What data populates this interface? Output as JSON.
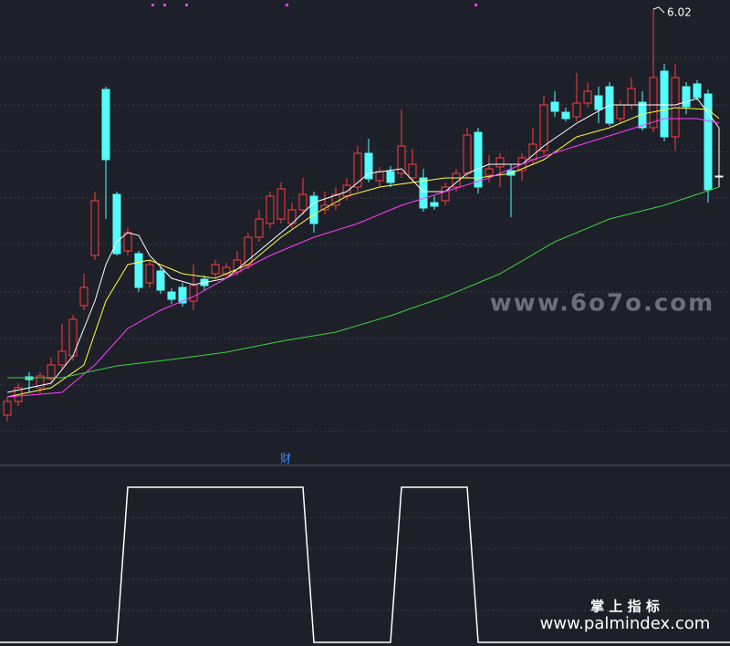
{
  "chart_data": [
    {
      "type": "candlestick",
      "up_color": "#ff3c3c",
      "down_color": "#54fcfc",
      "flat_color": "#ffffff",
      "ylim": [
        3.62,
        6.07
      ],
      "ohlc": [
        [
          3.795,
          3.895,
          3.76,
          3.87
        ],
        [
          3.87,
          3.97,
          3.845,
          3.945
        ],
        [
          4.005,
          4.03,
          3.92,
          3.99
        ],
        [
          3.945,
          4.03,
          3.91,
          4.01
        ],
        [
          3.995,
          4.11,
          3.97,
          4.07
        ],
        [
          4.07,
          4.295,
          4.045,
          4.145
        ],
        [
          4.12,
          4.345,
          4.095,
          4.32
        ],
        [
          4.395,
          4.57,
          4.37,
          4.495
        ],
        [
          4.67,
          5.02,
          4.645,
          4.97
        ],
        [
          5.58,
          5.595,
          4.87,
          5.195
        ],
        [
          5.005,
          5.02,
          4.67,
          4.68
        ],
        [
          4.695,
          4.82,
          4.67,
          4.795
        ],
        [
          4.68,
          4.695,
          4.47,
          4.495
        ],
        [
          4.52,
          4.645,
          4.495,
          4.62
        ],
        [
          4.585,
          4.61,
          4.46,
          4.48
        ],
        [
          4.47,
          4.49,
          4.405,
          4.43
        ],
        [
          4.495,
          4.52,
          4.39,
          4.41
        ],
        [
          4.42,
          4.62,
          4.37,
          4.505
        ],
        [
          4.54,
          4.56,
          4.48,
          4.505
        ],
        [
          4.57,
          4.645,
          4.545,
          4.62
        ],
        [
          4.57,
          4.63,
          4.55,
          4.605
        ],
        [
          4.58,
          4.695,
          4.56,
          4.645
        ],
        [
          4.62,
          4.795,
          4.595,
          4.77
        ],
        [
          4.77,
          4.92,
          4.745,
          4.87
        ],
        [
          4.845,
          5.02,
          4.82,
          4.995
        ],
        [
          4.87,
          5.07,
          4.845,
          5.035
        ],
        [
          4.845,
          4.96,
          4.82,
          4.92
        ],
        [
          4.92,
          5.095,
          4.895,
          5.005
        ],
        [
          4.995,
          5.02,
          4.795,
          4.845
        ],
        [
          4.92,
          5.02,
          4.895,
          4.945
        ],
        [
          4.945,
          5.045,
          4.92,
          5.005
        ],
        [
          4.995,
          5.095,
          4.97,
          5.055
        ],
        [
          5.045,
          5.27,
          5.02,
          5.23
        ],
        [
          5.23,
          5.31,
          5.07,
          5.09
        ],
        [
          5.08,
          5.155,
          5.045,
          5.13
        ],
        [
          5.13,
          5.16,
          5.045,
          5.07
        ],
        [
          5.12,
          5.47,
          5.095,
          5.27
        ],
        [
          5.095,
          5.255,
          5.07,
          5.17
        ],
        [
          5.095,
          5.145,
          4.91,
          4.93
        ],
        [
          4.96,
          4.995,
          4.92,
          4.94
        ],
        [
          4.97,
          5.07,
          4.945,
          5.045
        ],
        [
          5.045,
          5.145,
          5.02,
          5.12
        ],
        [
          5.12,
          5.37,
          5.095,
          5.33
        ],
        [
          5.345,
          5.37,
          5.01,
          5.045
        ],
        [
          5.11,
          5.22,
          5.07,
          5.145
        ],
        [
          5.155,
          5.23,
          5.045,
          5.205
        ],
        [
          5.135,
          5.17,
          4.88,
          5.11
        ],
        [
          5.135,
          5.23,
          5.08,
          5.205
        ],
        [
          5.195,
          5.37,
          5.17,
          5.28
        ],
        [
          5.245,
          5.545,
          5.22,
          5.495
        ],
        [
          5.51,
          5.57,
          5.43,
          5.46
        ],
        [
          5.455,
          5.48,
          5.405,
          5.42
        ],
        [
          5.43,
          5.67,
          5.405,
          5.505
        ],
        [
          5.505,
          5.62,
          5.48,
          5.57
        ],
        [
          5.545,
          5.595,
          5.395,
          5.47
        ],
        [
          5.595,
          5.62,
          5.38,
          5.395
        ],
        [
          5.42,
          5.52,
          5.395,
          5.495
        ],
        [
          5.495,
          5.645,
          5.47,
          5.585
        ],
        [
          5.51,
          5.57,
          5.355,
          5.37
        ],
        [
          5.37,
          6.02,
          5.345,
          5.645
        ],
        [
          5.68,
          5.72,
          5.295,
          5.32
        ],
        [
          5.32,
          5.72,
          5.245,
          5.645
        ],
        [
          5.595,
          5.62,
          5.445,
          5.485
        ],
        [
          5.61,
          5.63,
          5.52,
          5.535
        ],
        [
          5.555,
          5.58,
          4.96,
          5.03
        ],
        [
          5.105,
          5.37,
          5.045,
          5.105
        ]
      ],
      "lines": [
        {
          "color": "#ffffff",
          "x": [
            0,
            4,
            6,
            8,
            9,
            10,
            11,
            12,
            13,
            15,
            17,
            20,
            23,
            26,
            28,
            31,
            33,
            36,
            38,
            40,
            42,
            44,
            47,
            49,
            52,
            55,
            58,
            61,
            63,
            65
          ],
          "values": [
            3.92,
            3.97,
            4.12,
            4.42,
            4.62,
            4.745,
            4.795,
            4.78,
            4.67,
            4.545,
            4.51,
            4.545,
            4.695,
            4.845,
            4.96,
            5.02,
            5.12,
            5.145,
            5.02,
            5.02,
            5.12,
            5.17,
            5.17,
            5.27,
            5.395,
            5.495,
            5.495,
            5.495,
            5.53,
            5.37
          ]
        },
        {
          "color": "#ffff3c",
          "x": [
            0,
            4,
            7,
            9,
            11,
            13,
            16,
            19,
            22,
            25,
            28,
            31,
            34,
            37,
            40,
            43,
            46,
            49,
            52,
            55,
            58,
            61,
            64,
            65
          ],
          "values": [
            3.895,
            3.945,
            4.07,
            4.42,
            4.62,
            4.645,
            4.57,
            4.545,
            4.62,
            4.77,
            4.895,
            4.995,
            5.045,
            5.07,
            5.095,
            5.095,
            5.12,
            5.195,
            5.32,
            5.37,
            5.445,
            5.48,
            5.47,
            5.42
          ]
        },
        {
          "color": "#ff3cff",
          "x": [
            0,
            5,
            8,
            11,
            14,
            17,
            20,
            24,
            28,
            32,
            36,
            40,
            44,
            48,
            52,
            56,
            60,
            63,
            65
          ],
          "values": [
            3.895,
            3.92,
            4.07,
            4.27,
            4.37,
            4.445,
            4.545,
            4.67,
            4.77,
            4.845,
            4.945,
            5.02,
            5.095,
            5.195,
            5.27,
            5.345,
            5.42,
            5.42,
            5.395
          ]
        },
        {
          "color": "#3cd23c",
          "x": [
            0,
            5,
            10,
            15,
            20,
            25,
            30,
            35,
            40,
            45,
            50,
            55,
            60,
            65
          ],
          "values": [
            4.0,
            4.0,
            4.065,
            4.1,
            4.14,
            4.2,
            4.25,
            4.34,
            4.445,
            4.57,
            4.745,
            4.87,
            4.945,
            5.045
          ]
        }
      ]
    },
    {
      "type": "line",
      "title": "财",
      "color": "#ffffff",
      "ylim": [
        0,
        1
      ],
      "values": [
        0,
        0,
        0,
        0,
        0,
        0,
        0,
        0,
        0,
        0,
        0,
        1,
        1,
        1,
        1,
        1,
        1,
        1,
        1,
        1,
        1,
        1,
        1,
        1,
        1,
        1,
        1,
        1,
        0,
        0,
        0,
        0,
        0,
        0,
        0,
        0,
        1,
        1,
        1,
        1,
        1,
        1,
        1,
        0,
        0,
        0,
        0,
        0,
        0,
        0,
        0,
        0,
        0,
        0,
        0,
        0,
        0,
        0,
        0,
        0,
        0,
        0,
        0,
        0,
        0,
        0
      ]
    }
  ],
  "watermarks": [
    "www.6o7o.com",
    "掌 上 指 标",
    "www.palmindex.com"
  ]
}
